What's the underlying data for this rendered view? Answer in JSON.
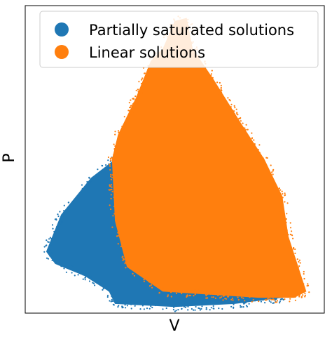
{
  "chart_data": {
    "type": "scatter",
    "title": "",
    "xlabel": "V",
    "ylabel": "P",
    "xlim": [
      0,
      1
    ],
    "ylim": [
      0,
      1
    ],
    "ticks": "none",
    "grid": false,
    "legend_position": "top-right",
    "series": [
      {
        "name": "Partially saturated solutions",
        "color": "#1f77b4",
        "region": [
          [
            0.07,
            0.2
          ],
          [
            0.12,
            0.32
          ],
          [
            0.22,
            0.44
          ],
          [
            0.3,
            0.5
          ],
          [
            0.38,
            0.56
          ],
          [
            0.42,
            0.76
          ],
          [
            0.44,
            0.78
          ],
          [
            0.52,
            0.68
          ],
          [
            0.6,
            0.56
          ],
          [
            0.72,
            0.44
          ],
          [
            0.82,
            0.3
          ],
          [
            0.86,
            0.22
          ],
          [
            0.9,
            0.08
          ],
          [
            0.86,
            0.05
          ],
          [
            0.7,
            0.03
          ],
          [
            0.5,
            0.02
          ],
          [
            0.3,
            0.03
          ],
          [
            0.28,
            0.07
          ],
          [
            0.2,
            0.12
          ],
          [
            0.1,
            0.16
          ]
        ]
      },
      {
        "name": "Linear solutions",
        "color": "#ff7f0e",
        "region": [
          [
            0.42,
            0.82
          ],
          [
            0.46,
            0.86
          ],
          [
            0.5,
            0.95
          ],
          [
            0.54,
            0.96
          ],
          [
            0.56,
            0.86
          ],
          [
            0.63,
            0.76
          ],
          [
            0.72,
            0.62
          ],
          [
            0.8,
            0.5
          ],
          [
            0.86,
            0.38
          ],
          [
            0.88,
            0.25
          ],
          [
            0.94,
            0.07
          ],
          [
            0.9,
            0.05
          ],
          [
            0.78,
            0.05
          ],
          [
            0.62,
            0.06
          ],
          [
            0.46,
            0.07
          ],
          [
            0.34,
            0.15
          ],
          [
            0.3,
            0.3
          ],
          [
            0.29,
            0.5
          ],
          [
            0.31,
            0.58
          ],
          [
            0.37,
            0.7
          ]
        ]
      }
    ]
  }
}
